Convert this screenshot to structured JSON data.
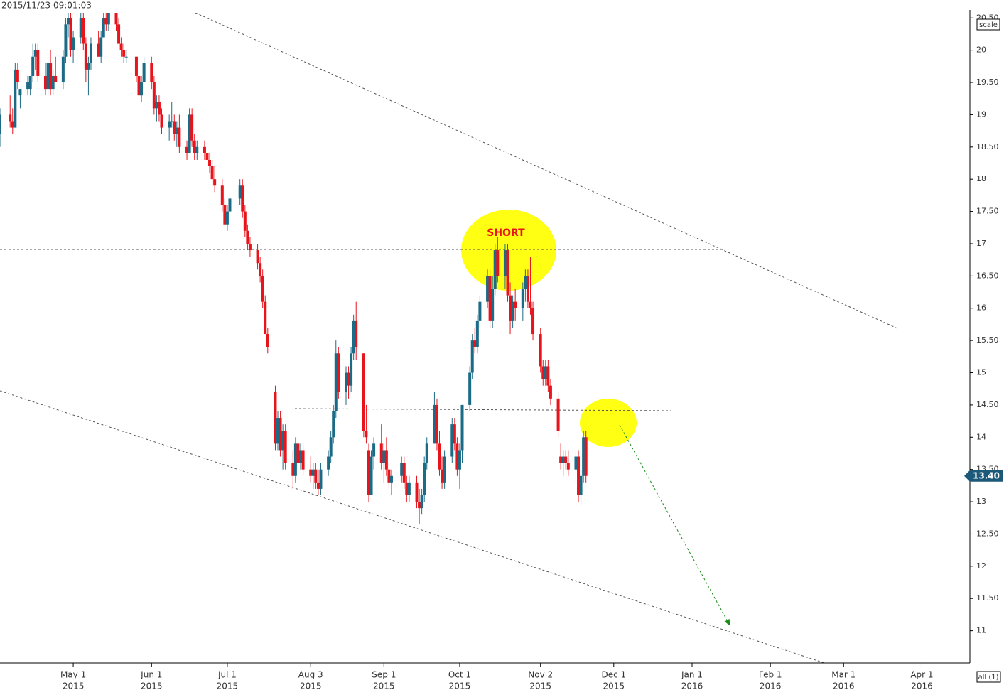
{
  "chart_data": {
    "type": "candlestick",
    "title": "2015/11/23 09:01:03",
    "annotations": [
      "SHORT"
    ],
    "buttons": [
      "scale",
      "all (1)"
    ],
    "up_color": "#1c6b86",
    "down_color": "#e8141c",
    "last": {
      "value": 13.4,
      "label": "13.40"
    },
    "ylim": [
      10.5,
      20.58
    ],
    "yticks": [
      {
        "value": 11,
        "label": "11"
      },
      {
        "value": 11.5,
        "label": "11.50"
      },
      {
        "value": 12,
        "label": "12"
      },
      {
        "value": 12.5,
        "label": "12.50"
      },
      {
        "value": 13,
        "label": "13"
      },
      {
        "value": 13.5,
        "label": "13.50"
      },
      {
        "value": 14,
        "label": "14"
      },
      {
        "value": 14.5,
        "label": "14.50"
      },
      {
        "value": 15,
        "label": "15"
      },
      {
        "value": 15.5,
        "label": "15.50"
      },
      {
        "value": 16,
        "label": "16"
      },
      {
        "value": 16.5,
        "label": "16.50"
      },
      {
        "value": 17,
        "label": "17"
      },
      {
        "value": 17.5,
        "label": "17.50"
      },
      {
        "value": 18,
        "label": "18"
      },
      {
        "value": 18.5,
        "label": "18.50"
      },
      {
        "value": 19,
        "label": "19"
      },
      {
        "value": 19.5,
        "label": "19.50"
      },
      {
        "value": 20,
        "label": "20"
      },
      {
        "value": 20.5,
        "label": "20.50"
      }
    ],
    "xlim": [
      "2015-04-02",
      "2016-04-20"
    ],
    "xticks": [
      {
        "value": "2015-05-01",
        "label": [
          "May 1",
          "2015"
        ]
      },
      {
        "value": "2015-06-01",
        "label": [
          "Jun 1",
          "2015"
        ]
      },
      {
        "value": "2015-07-01",
        "label": [
          "Jul 1",
          "2015"
        ]
      },
      {
        "value": "2015-08-03",
        "label": [
          "Aug 3",
          "2015"
        ]
      },
      {
        "value": "2015-09-01",
        "label": [
          "Sep 1",
          "2015"
        ]
      },
      {
        "value": "2015-10-01",
        "label": [
          "Oct 1",
          "2015"
        ]
      },
      {
        "value": "2015-11-02",
        "label": [
          "Nov 2",
          "2015"
        ]
      },
      {
        "value": "2015-12-01",
        "label": [
          "Dec 1",
          "2015"
        ]
      },
      {
        "value": "2016-01-01",
        "label": [
          "Jan 1",
          "2016"
        ]
      },
      {
        "value": "2016-02-01",
        "label": [
          "Feb 1",
          "2016"
        ]
      },
      {
        "value": "2016-03-01",
        "label": [
          "Mar 1",
          "2016"
        ]
      },
      {
        "value": "2016-04-01",
        "label": [
          "Apr 1",
          "2016"
        ]
      }
    ],
    "x": [
      "2015-04-02",
      "2015-04-06",
      "2015-04-07",
      "2015-04-08",
      "2015-04-09",
      "2015-04-10",
      "2015-04-13",
      "2015-04-14",
      "2015-04-15",
      "2015-04-16",
      "2015-04-17",
      "2015-04-20",
      "2015-04-21",
      "2015-04-22",
      "2015-04-23",
      "2015-04-24",
      "2015-04-27",
      "2015-04-28",
      "2015-04-29",
      "2015-04-30",
      "2015-05-01",
      "2015-05-04",
      "2015-05-05",
      "2015-05-06",
      "2015-05-07",
      "2015-05-08",
      "2015-05-11",
      "2015-05-12",
      "2015-05-13",
      "2015-05-14",
      "2015-05-15",
      "2015-05-18",
      "2015-05-19",
      "2015-05-20",
      "2015-05-21",
      "2015-05-22",
      "2015-05-26",
      "2015-05-27",
      "2015-05-28",
      "2015-05-29",
      "2015-06-01",
      "2015-06-02",
      "2015-06-03",
      "2015-06-04",
      "2015-06-05",
      "2015-06-08",
      "2015-06-09",
      "2015-06-10",
      "2015-06-11",
      "2015-06-12",
      "2015-06-15",
      "2015-06-16",
      "2015-06-17",
      "2015-06-18",
      "2015-06-19",
      "2015-06-22",
      "2015-06-23",
      "2015-06-24",
      "2015-06-25",
      "2015-06-26",
      "2015-06-29",
      "2015-06-30",
      "2015-07-01",
      "2015-07-02",
      "2015-07-06",
      "2015-07-07",
      "2015-07-08",
      "2015-07-09",
      "2015-07-10",
      "2015-07-13",
      "2015-07-14",
      "2015-07-15",
      "2015-07-16",
      "2015-07-17",
      "2015-07-20",
      "2015-07-21",
      "2015-07-22",
      "2015-07-23",
      "2015-07-24",
      "2015-07-27",
      "2015-07-28",
      "2015-07-29",
      "2015-07-30",
      "2015-07-31",
      "2015-08-03",
      "2015-08-04",
      "2015-08-05",
      "2015-08-06",
      "2015-08-07",
      "2015-08-10",
      "2015-08-11",
      "2015-08-12",
      "2015-08-13",
      "2015-08-14",
      "2015-08-17",
      "2015-08-18",
      "2015-08-19",
      "2015-08-20",
      "2015-08-21",
      "2015-08-24",
      "2015-08-25",
      "2015-08-26",
      "2015-08-27",
      "2015-08-28",
      "2015-08-31",
      "2015-09-01",
      "2015-09-02",
      "2015-09-03",
      "2015-09-04",
      "2015-09-08",
      "2015-09-09",
      "2015-09-10",
      "2015-09-11",
      "2015-09-14",
      "2015-09-15",
      "2015-09-16",
      "2015-09-17",
      "2015-09-18",
      "2015-09-21",
      "2015-09-22",
      "2015-09-23",
      "2015-09-24",
      "2015-09-25",
      "2015-09-28",
      "2015-09-29",
      "2015-09-30",
      "2015-10-01",
      "2015-10-02",
      "2015-10-05",
      "2015-10-06",
      "2015-10-07",
      "2015-10-08",
      "2015-10-09",
      "2015-10-12",
      "2015-10-13",
      "2015-10-14",
      "2015-10-15",
      "2015-10-16",
      "2015-10-19",
      "2015-10-20",
      "2015-10-21",
      "2015-10-22",
      "2015-10-23",
      "2015-10-26",
      "2015-10-27",
      "2015-10-28",
      "2015-10-29",
      "2015-10-30",
      "2015-11-02",
      "2015-11-03",
      "2015-11-04",
      "2015-11-05",
      "2015-11-06",
      "2015-11-09",
      "2015-11-10",
      "2015-11-11",
      "2015-11-12",
      "2015-11-13",
      "2015-11-16",
      "2015-11-17",
      "2015-11-18",
      "2015-11-19",
      "2015-11-20"
    ],
    "ohlc": [
      [
        18.7,
        19.1,
        18.5,
        19.0
      ],
      [
        19.0,
        19.3,
        18.8,
        18.9
      ],
      [
        18.9,
        19.1,
        18.7,
        18.8
      ],
      [
        18.8,
        19.8,
        18.8,
        19.7
      ],
      [
        19.7,
        19.8,
        19.4,
        19.5
      ],
      [
        19.3,
        19.4,
        19.1,
        19.4
      ],
      [
        19.4,
        19.6,
        19.3,
        19.5
      ],
      [
        19.4,
        19.6,
        19.3,
        19.6
      ],
      [
        19.6,
        20.1,
        19.5,
        19.9
      ],
      [
        19.9,
        20.1,
        19.7,
        20.0
      ],
      [
        20.0,
        20.1,
        19.5,
        19.6
      ],
      [
        19.6,
        19.8,
        19.3,
        19.4
      ],
      [
        19.4,
        19.9,
        19.3,
        19.8
      ],
      [
        19.8,
        20.0,
        19.3,
        19.4
      ],
      [
        19.4,
        19.7,
        19.3,
        19.6
      ],
      [
        19.6,
        19.9,
        19.5,
        19.5
      ],
      [
        19.5,
        20.0,
        19.4,
        19.9
      ],
      [
        19.9,
        20.5,
        19.8,
        20.4
      ],
      [
        20.4,
        20.6,
        20.2,
        20.5
      ],
      [
        20.5,
        20.6,
        19.9,
        20.0
      ],
      [
        20.0,
        20.3,
        19.8,
        20.2
      ],
      [
        20.2,
        20.6,
        20.1,
        20.5
      ],
      [
        20.5,
        20.6,
        20.0,
        20.1
      ],
      [
        20.1,
        20.2,
        19.5,
        19.7
      ],
      [
        19.7,
        19.9,
        19.3,
        19.8
      ],
      [
        19.8,
        20.2,
        19.7,
        20.1
      ],
      [
        20.1,
        20.3,
        19.9,
        19.9
      ],
      [
        19.9,
        20.3,
        19.8,
        20.2
      ],
      [
        20.2,
        20.6,
        20.2,
        20.5
      ],
      [
        20.5,
        20.6,
        20.3,
        20.4
      ],
      [
        20.4,
        20.6,
        20.3,
        20.6
      ],
      [
        20.6,
        20.7,
        20.3,
        20.4
      ],
      [
        20.4,
        20.5,
        20.1,
        20.1
      ],
      [
        20.1,
        20.2,
        19.9,
        20.0
      ],
      [
        20.0,
        20.1,
        19.8,
        19.9
      ],
      [
        19.9,
        20.0,
        19.8,
        19.9
      ],
      [
        19.9,
        19.9,
        19.5,
        19.6
      ],
      [
        19.6,
        19.7,
        19.2,
        19.3
      ],
      [
        19.3,
        19.6,
        19.2,
        19.5
      ],
      [
        19.5,
        19.9,
        19.5,
        19.8
      ],
      [
        19.8,
        19.9,
        19.4,
        19.5
      ],
      [
        19.5,
        19.6,
        19.0,
        19.1
      ],
      [
        19.1,
        19.3,
        18.9,
        19.2
      ],
      [
        19.2,
        19.3,
        18.9,
        19.0
      ],
      [
        19.0,
        19.1,
        18.7,
        18.8
      ],
      [
        18.8,
        19.0,
        18.6,
        18.9
      ],
      [
        18.9,
        19.2,
        18.8,
        18.9
      ],
      [
        18.9,
        19.0,
        18.6,
        18.7
      ],
      [
        18.7,
        18.9,
        18.5,
        18.8
      ],
      [
        18.8,
        19.0,
        18.4,
        18.5
      ],
      [
        18.5,
        18.6,
        18.3,
        18.4
      ],
      [
        18.4,
        19.1,
        18.4,
        19.0
      ],
      [
        19.0,
        19.1,
        18.5,
        18.6
      ],
      [
        18.6,
        18.7,
        18.3,
        18.4
      ],
      [
        18.4,
        18.6,
        18.3,
        18.5
      ],
      [
        18.5,
        18.6,
        18.3,
        18.4
      ],
      [
        18.4,
        18.5,
        18.2,
        18.3
      ],
      [
        18.3,
        18.4,
        18.1,
        18.2
      ],
      [
        18.2,
        18.3,
        17.9,
        18.0
      ],
      [
        18.0,
        18.2,
        17.8,
        17.9
      ],
      [
        17.9,
        18.0,
        17.5,
        17.6
      ],
      [
        17.6,
        17.7,
        17.3,
        17.3
      ],
      [
        17.3,
        17.6,
        17.2,
        17.5
      ],
      [
        17.5,
        17.8,
        17.4,
        17.7
      ],
      [
        17.7,
        18.0,
        17.6,
        17.9
      ],
      [
        17.9,
        18.0,
        17.4,
        17.5
      ],
      [
        17.5,
        17.6,
        17.1,
        17.2
      ],
      [
        17.2,
        17.3,
        16.9,
        17.0
      ],
      [
        17.0,
        17.1,
        16.8,
        16.9
      ],
      [
        16.9,
        17.0,
        16.6,
        16.7
      ],
      [
        16.7,
        16.8,
        16.4,
        16.5
      ],
      [
        16.5,
        16.6,
        16.0,
        16.1
      ],
      [
        16.1,
        16.2,
        15.6,
        15.6
      ],
      [
        15.6,
        15.7,
        15.3,
        15.4
      ],
      [
        14.7,
        14.8,
        13.8,
        13.9
      ],
      [
        13.9,
        14.4,
        13.8,
        14.3
      ],
      [
        14.3,
        14.4,
        13.7,
        13.8
      ],
      [
        13.8,
        14.2,
        13.5,
        14.1
      ],
      [
        14.1,
        14.2,
        13.5,
        13.6
      ],
      [
        13.6,
        13.8,
        13.2,
        13.4
      ],
      [
        13.4,
        14.0,
        13.3,
        13.9
      ],
      [
        13.9,
        14.0,
        13.5,
        13.6
      ],
      [
        13.6,
        13.9,
        13.5,
        13.8
      ],
      [
        13.8,
        13.9,
        13.4,
        13.5
      ],
      [
        13.5,
        13.7,
        13.3,
        13.4
      ],
      [
        13.4,
        13.6,
        13.2,
        13.5
      ],
      [
        13.5,
        13.6,
        13.2,
        13.3
      ],
      [
        13.3,
        13.5,
        13.1,
        13.2
      ],
      [
        13.2,
        13.6,
        13.1,
        13.5
      ],
      [
        13.5,
        13.8,
        13.4,
        13.7
      ],
      [
        13.7,
        14.1,
        13.6,
        14.0
      ],
      [
        14.0,
        14.5,
        13.9,
        14.4
      ],
      [
        14.4,
        15.5,
        14.3,
        15.3
      ],
      [
        15.3,
        15.4,
        14.6,
        14.7
      ],
      [
        14.7,
        15.1,
        14.5,
        15.0
      ],
      [
        15.0,
        15.1,
        14.6,
        14.8
      ],
      [
        14.8,
        15.4,
        14.7,
        15.3
      ],
      [
        15.3,
        15.9,
        15.2,
        15.8
      ],
      [
        15.8,
        16.1,
        15.2,
        15.4
      ],
      [
        15.3,
        15.3,
        14.0,
        14.1
      ],
      [
        14.1,
        14.5,
        13.9,
        14.0
      ],
      [
        13.8,
        13.9,
        13.0,
        13.1
      ],
      [
        13.1,
        13.8,
        13.1,
        13.7
      ],
      [
        13.7,
        14.0,
        13.5,
        13.9
      ],
      [
        13.9,
        14.2,
        13.5,
        13.6
      ],
      [
        13.6,
        13.9,
        13.3,
        13.8
      ],
      [
        13.8,
        14.0,
        13.4,
        13.5
      ],
      [
        13.5,
        13.6,
        13.2,
        13.3
      ],
      [
        13.3,
        13.5,
        13.1,
        13.4
      ],
      [
        13.4,
        13.7,
        13.3,
        13.6
      ],
      [
        13.6,
        13.7,
        13.2,
        13.3
      ],
      [
        13.3,
        13.4,
        13.0,
        13.1
      ],
      [
        13.1,
        13.4,
        13.0,
        13.3
      ],
      [
        13.3,
        13.4,
        12.9,
        13.0
      ],
      [
        13.0,
        13.2,
        12.65,
        12.9
      ],
      [
        12.9,
        13.2,
        12.8,
        13.1
      ],
      [
        13.1,
        13.7,
        13.0,
        13.6
      ],
      [
        13.6,
        14.0,
        13.5,
        13.9
      ],
      [
        13.9,
        14.7,
        13.9,
        14.5
      ],
      [
        14.5,
        14.6,
        13.8,
        13.9
      ],
      [
        13.9,
        14.1,
        13.4,
        13.5
      ],
      [
        13.5,
        13.7,
        13.2,
        13.3
      ],
      [
        13.3,
        13.8,
        13.2,
        13.7
      ],
      [
        13.7,
        14.3,
        13.6,
        14.2
      ],
      [
        14.2,
        14.3,
        13.8,
        13.9
      ],
      [
        13.9,
        14.0,
        13.4,
        13.5
      ],
      [
        13.5,
        13.9,
        13.2,
        13.8
      ],
      [
        13.8,
        14.5,
        13.6,
        14.5
      ],
      [
        14.5,
        15.1,
        14.4,
        15.0
      ],
      [
        15.0,
        15.6,
        14.9,
        15.5
      ],
      [
        15.5,
        15.7,
        15.3,
        15.4
      ],
      [
        15.4,
        15.9,
        15.3,
        15.8
      ],
      [
        15.8,
        16.2,
        15.7,
        16.1
      ],
      [
        16.1,
        16.6,
        16.0,
        16.5
      ],
      [
        16.5,
        16.6,
        15.7,
        15.8
      ],
      [
        15.8,
        16.5,
        15.7,
        16.3
      ],
      [
        16.3,
        17.0,
        16.2,
        16.9
      ],
      [
        16.9,
        17.1,
        16.4,
        16.5
      ],
      [
        16.5,
        17.0,
        16.3,
        16.9
      ],
      [
        16.9,
        17.0,
        16.1,
        16.2
      ],
      [
        16.2,
        16.4,
        15.6,
        15.8
      ],
      [
        15.8,
        16.2,
        15.7,
        16.1
      ],
      [
        16.1,
        16.3,
        15.8,
        16.0
      ],
      [
        16.0,
        16.4,
        15.8,
        16.3
      ],
      [
        16.3,
        16.6,
        16.1,
        16.5
      ],
      [
        16.5,
        16.6,
        16.0,
        16.1
      ],
      [
        16.1,
        16.8,
        15.9,
        16.0
      ],
      [
        16.0,
        16.1,
        15.5,
        15.6
      ],
      [
        15.6,
        15.7,
        15.0,
        15.1
      ],
      [
        15.1,
        15.2,
        14.8,
        14.9
      ],
      [
        14.9,
        15.2,
        14.8,
        15.1
      ],
      [
        15.1,
        15.2,
        14.7,
        14.8
      ],
      [
        14.8,
        14.9,
        14.5,
        14.6
      ],
      [
        14.6,
        14.7,
        14.0,
        14.1
      ],
      [
        13.7,
        13.9,
        13.5,
        13.6
      ],
      [
        13.6,
        13.8,
        13.4,
        13.7
      ],
      [
        13.7,
        13.8,
        13.5,
        13.6
      ],
      [
        13.6,
        13.8,
        13.4,
        13.5
      ],
      [
        13.5,
        13.8,
        13.3,
        13.7
      ],
      [
        13.7,
        13.8,
        13.0,
        13.1
      ],
      [
        13.1,
        13.5,
        12.95,
        13.4
      ],
      [
        13.4,
        14.1,
        13.3,
        14.0
      ],
      [
        14.0,
        14.1,
        13.3,
        13.4
      ]
    ]
  }
}
